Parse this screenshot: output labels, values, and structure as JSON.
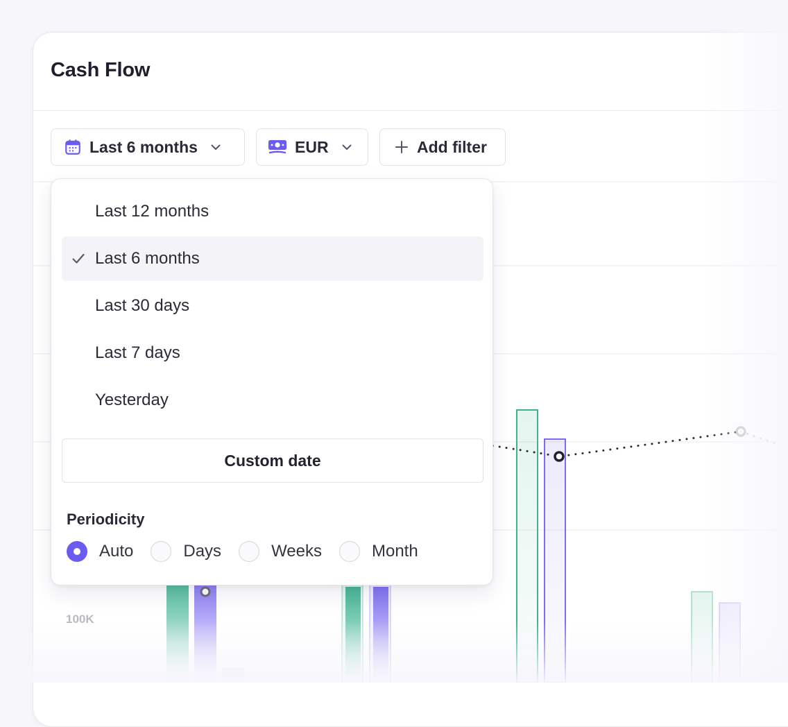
{
  "card": {
    "title": "Cash Flow"
  },
  "filters": {
    "period_label": "Last 6 months",
    "currency_label": "EUR",
    "add_filter_label": "Add filter"
  },
  "dropdown": {
    "options": [
      {
        "label": "Last 12 months",
        "selected": false
      },
      {
        "label": "Last 6 months",
        "selected": true
      },
      {
        "label": "Last 30 days",
        "selected": false
      },
      {
        "label": "Last 7 days",
        "selected": false
      },
      {
        "label": "Yesterday",
        "selected": false
      }
    ],
    "custom_date_label": "Custom date",
    "periodicity_label": "Periodicity",
    "periodicity_options": [
      {
        "label": "Auto",
        "checked": true
      },
      {
        "label": "Days",
        "checked": false
      },
      {
        "label": "Weeks",
        "checked": false
      },
      {
        "label": "Month",
        "checked": false
      }
    ]
  },
  "chart": {
    "y_tick_label": "100K"
  },
  "icons": {
    "period": "calendar-icon",
    "currency": "banknote-icon",
    "add_filter": "plus-icon",
    "dropdown_toggle": "chevron-down-icon",
    "selected_option": "check-icon"
  },
  "colors": {
    "accent": "#6b5cf0",
    "income_bar": "#3db38f",
    "expense_bar": "#7b6cf0"
  }
}
